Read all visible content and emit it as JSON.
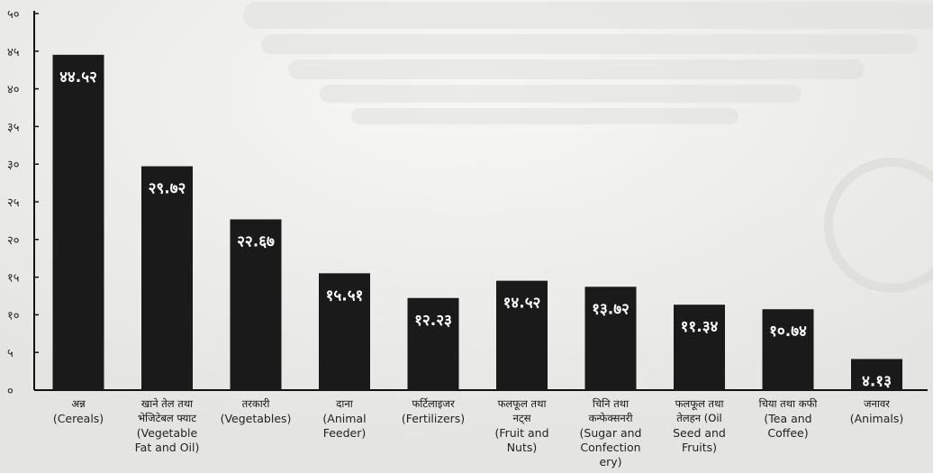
{
  "chart_data": {
    "type": "bar",
    "ylim": [
      0,
      50
    ],
    "yticks": [
      "०",
      "५",
      "१०",
      "१५",
      "२०",
      "२५",
      "३०",
      "३५",
      "४०",
      "४५",
      "५०"
    ],
    "bar_color": "#1a1a1a",
    "categories": [
      {
        "label_np": [
          "अन्न"
        ],
        "label_en": [
          "(Cereals)"
        ],
        "value": 44.52,
        "value_label": "४४.५२"
      },
      {
        "label_np": [
          "खाने तेल तथा",
          "भेजिटेबल फ्याट"
        ],
        "label_en": [
          "(Vegetable",
          "Fat and Oil)"
        ],
        "value": 29.72,
        "value_label": "२९.७२"
      },
      {
        "label_np": [
          "तरकारी"
        ],
        "label_en": [
          "(Vegetables)"
        ],
        "value": 22.67,
        "value_label": "२२.६७"
      },
      {
        "label_np": [
          "दाना"
        ],
        "label_en": [
          "(Animal",
          "Feeder)"
        ],
        "value": 15.51,
        "value_label": "१५.५१"
      },
      {
        "label_np": [
          "फर्टिलाइजर"
        ],
        "label_en": [
          "(Fertilizers)"
        ],
        "value": 12.23,
        "value_label": "१२.२३"
      },
      {
        "label_np": [
          "फलफूल तथा",
          "नट्स"
        ],
        "label_en": [
          "(Fruit and",
          "Nuts)"
        ],
        "value": 14.52,
        "value_label": "१४.५२"
      },
      {
        "label_np": [
          "चिनि तथा",
          "कन्फेक्सनरी"
        ],
        "label_en": [
          "(Sugar and",
          "Confection",
          "ery)"
        ],
        "value": 13.72,
        "value_label": "१३.७२"
      },
      {
        "label_np": [
          "फलफूल तथा",
          "तेलहन (Oil"
        ],
        "label_en": [
          "Seed and",
          "Fruits)"
        ],
        "value": 11.34,
        "value_label": "११.३४"
      },
      {
        "label_np": [
          "चिया तथा कफी"
        ],
        "label_en": [
          "(Tea and",
          "Coffee)"
        ],
        "value": 10.74,
        "value_label": "१०.७४"
      },
      {
        "label_np": [
          "जनावर"
        ],
        "label_en": [
          "(Animals)"
        ],
        "value": 4.13,
        "value_label": "४.१३"
      }
    ]
  }
}
